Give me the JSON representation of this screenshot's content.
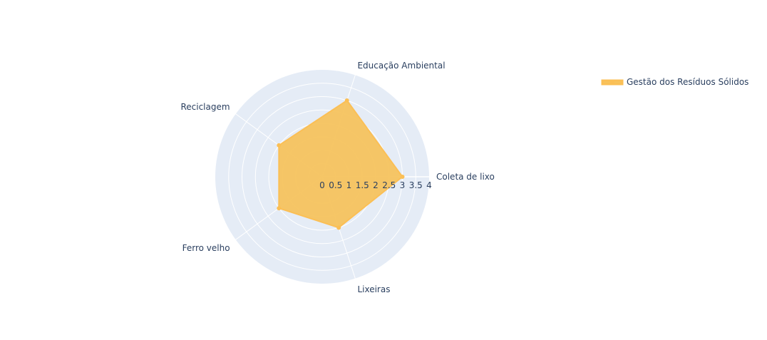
{
  "chart_data": {
    "type": "radar",
    "categories": [
      "Coleta de lixo",
      "Educação Ambiental",
      "Reciclagem",
      "Ferro velho",
      "Lixeiras"
    ],
    "series": [
      {
        "name": "Gestão dos Resíduos Sólidos",
        "values": [
          3.0,
          3.0,
          2.0,
          2.0,
          2.0
        ]
      }
    ],
    "radial_range": [
      0,
      4
    ],
    "radial_ticks": [
      "0",
      "0.5",
      "1",
      "1.5",
      "2",
      "2.5",
      "3",
      "3.5",
      "4"
    ],
    "grid": true,
    "legend_position": "top-right",
    "colors": {
      "fill": "#f6c35e",
      "line": "#fbbf55",
      "polar_bg": "#e5ecf6",
      "grid": "#ffffff",
      "text": "#2a3f5f"
    }
  }
}
